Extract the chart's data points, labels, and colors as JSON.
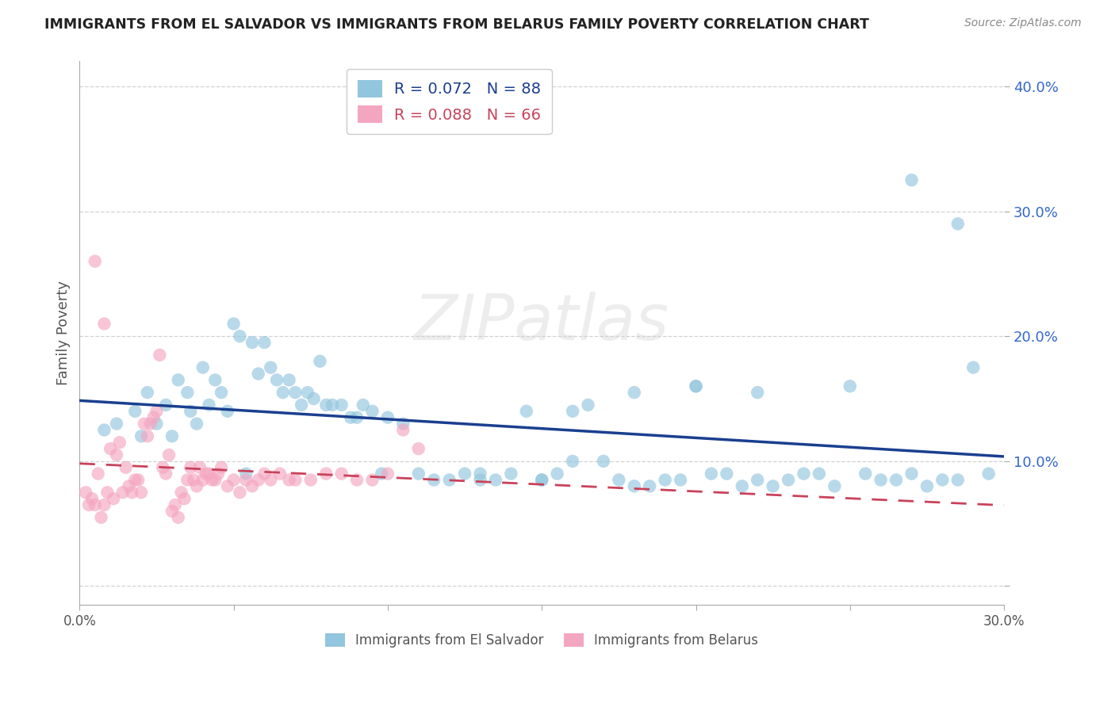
{
  "title": "IMMIGRANTS FROM EL SALVADOR VS IMMIGRANTS FROM BELARUS FAMILY POVERTY CORRELATION CHART",
  "source": "Source: ZipAtlas.com",
  "ylabel": "Family Poverty",
  "xlim": [
    0.0,
    0.3
  ],
  "ylim": [
    -0.015,
    0.42
  ],
  "ytick_vals": [
    0.0,
    0.1,
    0.2,
    0.3,
    0.4
  ],
  "ytick_labels": [
    "",
    "10.0%",
    "20.0%",
    "30.0%",
    "40.0%"
  ],
  "xtick_vals": [
    0.0,
    0.05,
    0.1,
    0.15,
    0.2,
    0.25,
    0.3
  ],
  "xtick_labels": [
    "0.0%",
    "",
    "",
    "",
    "",
    "",
    "30.0%"
  ],
  "legend_line1": "R = 0.072   N = 88",
  "legend_line2": "R = 0.088   N = 66",
  "color_blue": "#92c5de",
  "color_pink": "#f4a6c0",
  "color_blue_line": "#1a3f8f",
  "color_pink_line": "#c9425a",
  "label_salvador": "Immigrants from El Salvador",
  "label_belarus": "Immigrants from Belarus",
  "watermark": "ZIPatlas",
  "es_x": [
    0.008,
    0.012,
    0.018,
    0.02,
    0.022,
    0.025,
    0.028,
    0.03,
    0.032,
    0.035,
    0.036,
    0.038,
    0.04,
    0.042,
    0.044,
    0.046,
    0.048,
    0.05,
    0.052,
    0.054,
    0.056,
    0.058,
    0.06,
    0.062,
    0.064,
    0.066,
    0.068,
    0.07,
    0.072,
    0.074,
    0.076,
    0.078,
    0.08,
    0.082,
    0.085,
    0.088,
    0.09,
    0.092,
    0.095,
    0.098,
    0.1,
    0.105,
    0.11,
    0.115,
    0.12,
    0.125,
    0.13,
    0.135,
    0.14,
    0.145,
    0.15,
    0.155,
    0.16,
    0.165,
    0.17,
    0.175,
    0.18,
    0.185,
    0.19,
    0.195,
    0.2,
    0.205,
    0.21,
    0.215,
    0.22,
    0.225,
    0.23,
    0.235,
    0.24,
    0.245,
    0.25,
    0.255,
    0.26,
    0.265,
    0.27,
    0.275,
    0.28,
    0.285,
    0.29,
    0.295,
    0.13,
    0.15,
    0.16,
    0.18,
    0.2,
    0.22,
    0.27,
    0.285
  ],
  "es_y": [
    0.125,
    0.13,
    0.14,
    0.12,
    0.155,
    0.13,
    0.145,
    0.12,
    0.165,
    0.155,
    0.14,
    0.13,
    0.175,
    0.145,
    0.165,
    0.155,
    0.14,
    0.21,
    0.2,
    0.09,
    0.195,
    0.17,
    0.195,
    0.175,
    0.165,
    0.155,
    0.165,
    0.155,
    0.145,
    0.155,
    0.15,
    0.18,
    0.145,
    0.145,
    0.145,
    0.135,
    0.135,
    0.145,
    0.14,
    0.09,
    0.135,
    0.13,
    0.09,
    0.085,
    0.085,
    0.09,
    0.085,
    0.085,
    0.09,
    0.14,
    0.085,
    0.09,
    0.1,
    0.145,
    0.1,
    0.085,
    0.08,
    0.08,
    0.085,
    0.085,
    0.16,
    0.09,
    0.09,
    0.08,
    0.085,
    0.08,
    0.085,
    0.09,
    0.09,
    0.08,
    0.16,
    0.09,
    0.085,
    0.085,
    0.09,
    0.08,
    0.085,
    0.085,
    0.175,
    0.09,
    0.09,
    0.085,
    0.14,
    0.155,
    0.16,
    0.155,
    0.325,
    0.29
  ],
  "bel_x": [
    0.002,
    0.003,
    0.004,
    0.005,
    0.006,
    0.007,
    0.008,
    0.009,
    0.01,
    0.011,
    0.012,
    0.013,
    0.014,
    0.015,
    0.016,
    0.017,
    0.018,
    0.019,
    0.02,
    0.021,
    0.022,
    0.023,
    0.024,
    0.025,
    0.026,
    0.027,
    0.028,
    0.029,
    0.03,
    0.031,
    0.032,
    0.033,
    0.034,
    0.035,
    0.036,
    0.037,
    0.038,
    0.039,
    0.04,
    0.041,
    0.042,
    0.043,
    0.044,
    0.045,
    0.046,
    0.048,
    0.05,
    0.052,
    0.054,
    0.056,
    0.058,
    0.06,
    0.062,
    0.065,
    0.068,
    0.07,
    0.075,
    0.08,
    0.085,
    0.09,
    0.095,
    0.1,
    0.105,
    0.11,
    0.005,
    0.008
  ],
  "bel_y": [
    0.075,
    0.065,
    0.07,
    0.065,
    0.09,
    0.055,
    0.065,
    0.075,
    0.11,
    0.07,
    0.105,
    0.115,
    0.075,
    0.095,
    0.08,
    0.075,
    0.085,
    0.085,
    0.075,
    0.13,
    0.12,
    0.13,
    0.135,
    0.14,
    0.185,
    0.095,
    0.09,
    0.105,
    0.06,
    0.065,
    0.055,
    0.075,
    0.07,
    0.085,
    0.095,
    0.085,
    0.08,
    0.095,
    0.085,
    0.09,
    0.09,
    0.085,
    0.085,
    0.09,
    0.095,
    0.08,
    0.085,
    0.075,
    0.085,
    0.08,
    0.085,
    0.09,
    0.085,
    0.09,
    0.085,
    0.085,
    0.085,
    0.09,
    0.09,
    0.085,
    0.085,
    0.09,
    0.125,
    0.11,
    0.26,
    0.21
  ]
}
